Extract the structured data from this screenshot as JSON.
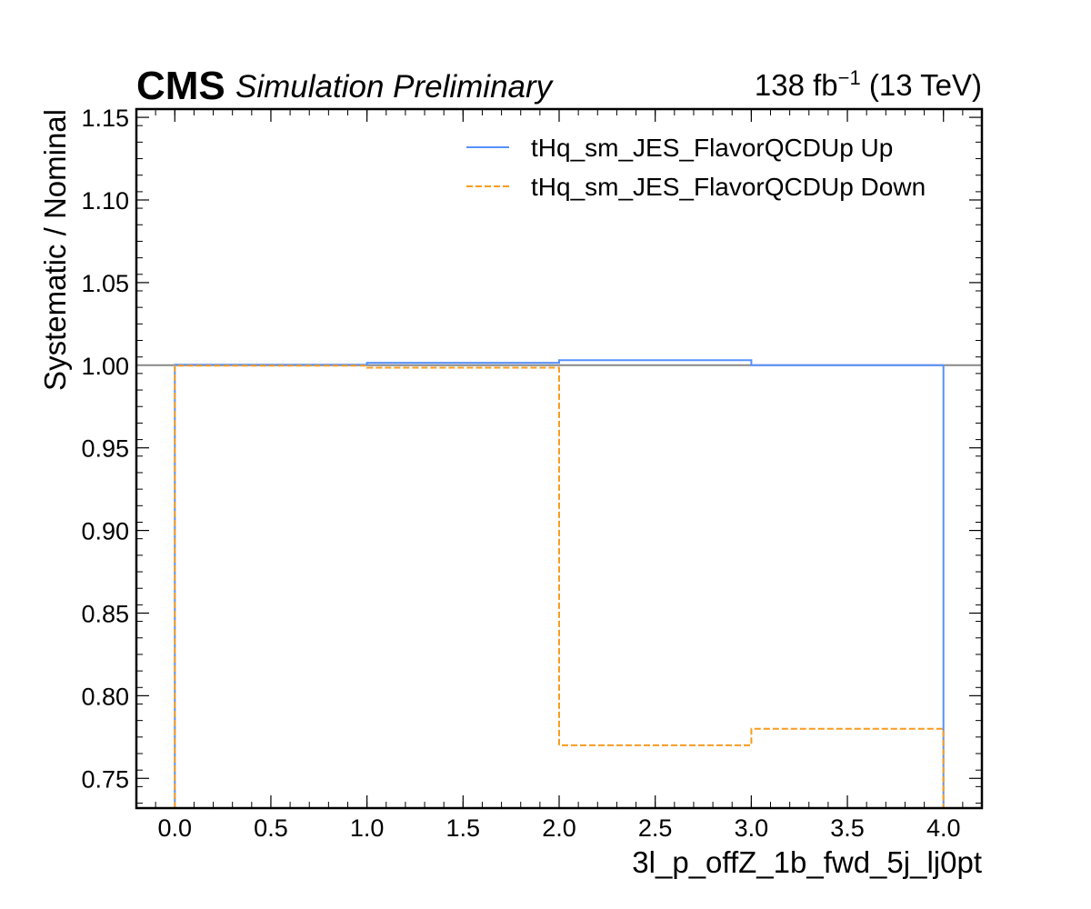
{
  "header": {
    "cms": "CMS",
    "subtitle": "Simulation Preliminary",
    "lumi_value": "138 fb",
    "lumi_exp": "−1",
    "lumi_energy": " (13 TeV)"
  },
  "chart_data": {
    "type": "line",
    "drawstyle": "steps",
    "xlabel": "3l_p_offZ_1b_fwd_5j_lj0pt",
    "ylabel": "Systematic / Nominal",
    "xlim": [
      -0.2,
      4.2
    ],
    "ylim": [
      0.732,
      1.155
    ],
    "x_ticks": [
      "0.0",
      "0.5",
      "1.0",
      "1.5",
      "2.0",
      "2.5",
      "3.0",
      "3.5",
      "4.0"
    ],
    "y_ticks": [
      "0.75",
      "0.80",
      "0.85",
      "0.90",
      "0.95",
      "1.00",
      "1.05",
      "1.10",
      "1.15"
    ],
    "bin_edges": [
      0,
      1,
      2,
      3,
      4
    ],
    "reference_line": 1.0,
    "legend_position": "top-right",
    "series": [
      {
        "name": "tHq_sm_JES_FlavorQCDUp Up",
        "values": [
          1.0003,
          1.0015,
          1.003,
          1.0
        ],
        "color": "#5790fc",
        "style": "solid"
      },
      {
        "name": "tHq_sm_JES_FlavorQCDUp Down",
        "values": [
          0.9997,
          0.9985,
          0.77,
          0.78
        ],
        "color": "#f89c20",
        "style": "dashed"
      }
    ]
  }
}
